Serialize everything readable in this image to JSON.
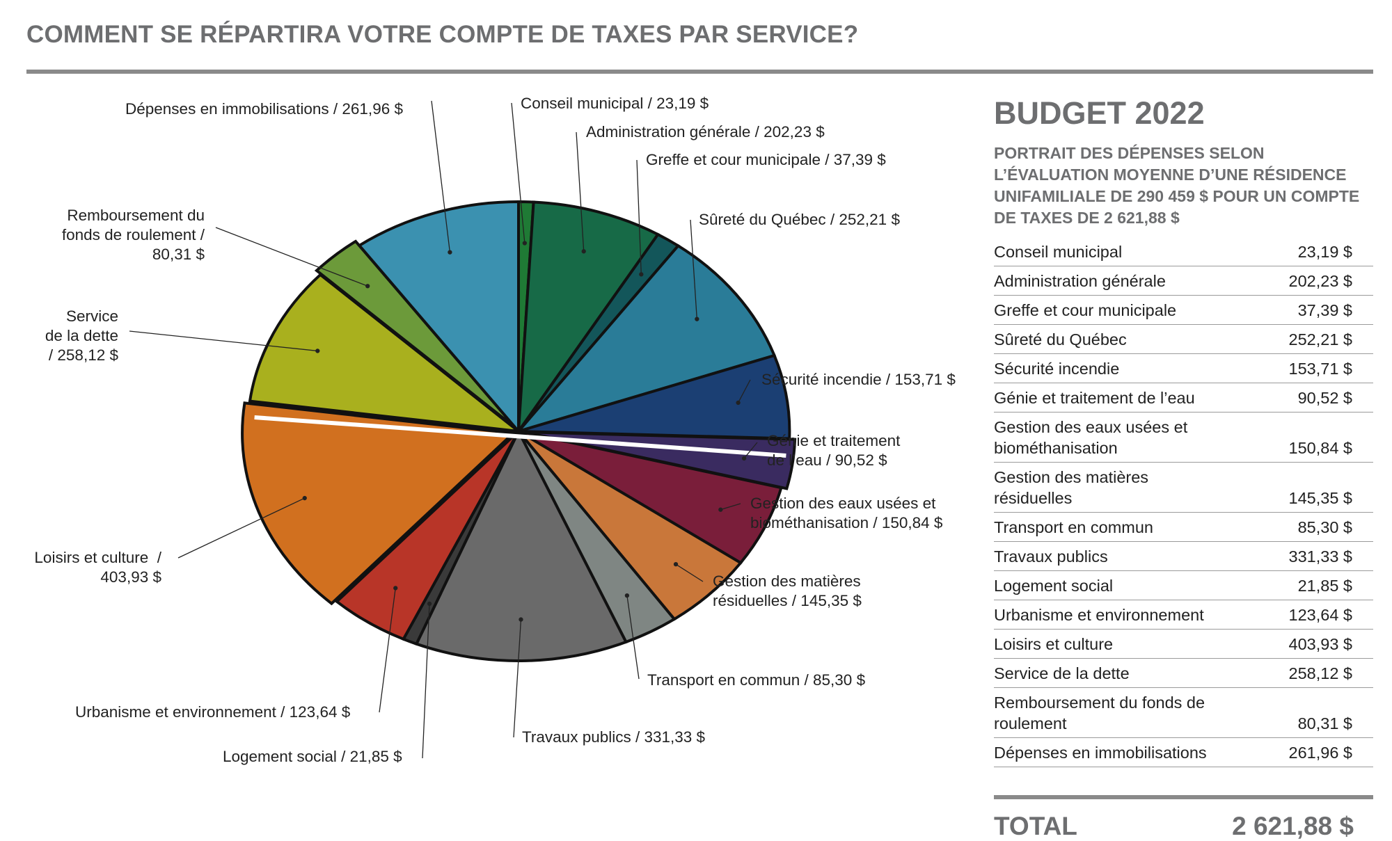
{
  "title": "COMMENT SE RÉPARTIRA VOTRE COMPTE DE TAXES PAR SERVICE?",
  "budget": {
    "heading": "BUDGET 2022",
    "subtitle": "PORTRAIT DES DÉPENSES SELON L’ÉVALUATION MOYENNE D’UNE RÉSIDENCE UNIFAMILIALE DE 290 459 $ POUR UN COMPTE DE TAXES DE 2 621,88 $",
    "rows": [
      {
        "name": "Conseil municipal",
        "value": "23,19 $"
      },
      {
        "name": "Administration générale",
        "value": "202,23 $"
      },
      {
        "name": "Greffe et cour municipale",
        "value": "37,39 $"
      },
      {
        "name": "Sûreté du Québec",
        "value": "252,21 $"
      },
      {
        "name": "Sécurité incendie",
        "value": "153,71 $"
      },
      {
        "name": "Génie et traitement de l’eau",
        "value": "90,52 $"
      },
      {
        "name": "Gestion des eaux usées et biométhanisation",
        "value": "150,84 $"
      },
      {
        "name": "Gestion des matières résiduelles",
        "value": "145,35 $"
      },
      {
        "name": "Transport en commun",
        "value": "85,30 $"
      },
      {
        "name": "Travaux publics",
        "value": "331,33 $"
      },
      {
        "name": "Logement social",
        "value": "21,85 $"
      },
      {
        "name": "Urbanisme et environnement",
        "value": "123,64 $"
      },
      {
        "name": "Loisirs et culture",
        "value": "403,93 $"
      },
      {
        "name": "Service de la dette",
        "value": "258,12 $"
      },
      {
        "name": "Remboursement du fonds de roulement",
        "value": "80,31 $"
      },
      {
        "name": "Dépenses en immobilisations",
        "value": "261,96 $"
      }
    ],
    "total_label": "TOTAL",
    "total_value": "2 621,88 $"
  },
  "labels": {
    "conseil": "Conseil municipal / 23,19 $",
    "admin": "Administration générale / 202,23 $",
    "greffe": "Greffe et cour municipale / 37,39 $",
    "surete": "Sûreté du Québec / 252,21 $",
    "incendie": "Sécurité incendie / 153,71 $",
    "genie": "Génie et traitement\nde l’eau / 90,52 $",
    "eaux": "Gestion des eaux usées et\nbiométhanisation / 150,84 $",
    "matieres": "Gestion des matières\nrésiduelles / 145,35 $",
    "transport": "Transport en commun / 85,30 $",
    "travaux": "Travaux publics / 331,33 $",
    "logement": "Logement social / 21,85 $",
    "urbanisme": "Urbanisme et environnement / 123,64 $",
    "loisirs": "Loisirs et culture  /\n403,93 $",
    "dette": "Service\nde la dette\n/ 258,12 $",
    "fonds": "Remboursement du\nfonds de roulement /\n80,31 $",
    "immob": "Dépenses en immobilisations / 261,96 $"
  },
  "chart_data": {
    "type": "pie",
    "title": "COMMENT SE RÉPARTIRA VOTRE COMPTE DE TAXES PAR SERVICE?",
    "unit": "$",
    "categories": [
      "Conseil municipal",
      "Administration générale",
      "Greffe et cour municipale",
      "Sûreté du Québec",
      "Sécurité incendie",
      "Génie et traitement de l’eau",
      "Gestion des eaux usées et biométhanisation",
      "Gestion des matières résiduelles",
      "Transport en commun",
      "Travaux publics",
      "Logement social",
      "Urbanisme et environnement",
      "Loisirs et culture",
      "Service de la dette",
      "Remboursement du fonds de roulement",
      "Dépenses en immobilisations"
    ],
    "values": [
      23.19,
      202.23,
      37.39,
      252.21,
      153.71,
      90.52,
      150.84,
      145.35,
      85.3,
      331.33,
      21.85,
      123.64,
      403.93,
      258.12,
      80.31,
      261.96
    ],
    "colors": [
      "#1f7a35",
      "#176a47",
      "#13565a",
      "#2a7c98",
      "#1b3f73",
      "#3a2b60",
      "#7a1e3a",
      "#c9773a",
      "#7f8683",
      "#6a6a6a",
      "#3a3a3a",
      "#b83528",
      "#d1701f",
      "#a9b01e",
      "#6c9a3a",
      "#3b91b0"
    ],
    "total": "2 621,88 $"
  }
}
